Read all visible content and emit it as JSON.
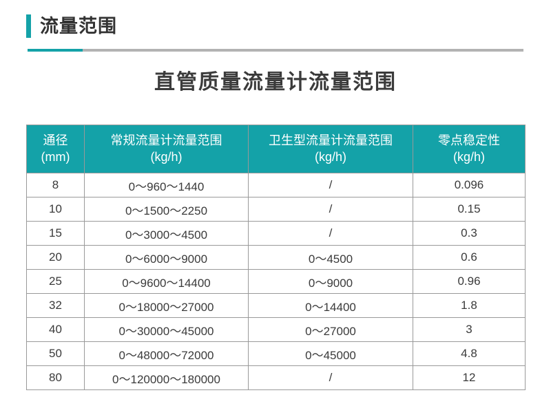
{
  "section": {
    "title": "流量范围"
  },
  "main": {
    "table_title": "直管质量流量计流量范围"
  },
  "colors": {
    "accent": "#14a2a8",
    "divider_gray": "#b3b3b3",
    "table_border": "#999999",
    "header_text": "#ffffff",
    "body_text": "#3a3a3a"
  },
  "table": {
    "headers": [
      {
        "line1": "通径",
        "line2": "(mm)"
      },
      {
        "line1": "常规流量计流量范围",
        "line2": "(kg/h)"
      },
      {
        "line1": "卫生型流量计流量范围",
        "line2": "(kg/h)"
      },
      {
        "line1": "零点稳定性",
        "line2": "(kg/h)"
      }
    ],
    "rows": [
      [
        "8",
        "0～960～1440",
        "/",
        "0.096"
      ],
      [
        "10",
        "0～1500～2250",
        "/",
        "0.15"
      ],
      [
        "15",
        "0～3000～4500",
        "/",
        "0.3"
      ],
      [
        "20",
        "0～6000～9000",
        "0～4500",
        "0.6"
      ],
      [
        "25",
        "0～9600～14400",
        "0～9000",
        "0.96"
      ],
      [
        "32",
        "0～18000～27000",
        "0～14400",
        "1.8"
      ],
      [
        "40",
        "0～30000～45000",
        "0～27000",
        "3"
      ],
      [
        "50",
        "0～48000～72000",
        "0～45000",
        "4.8"
      ],
      [
        "80",
        "0～120000～180000",
        "/",
        "12"
      ]
    ]
  }
}
